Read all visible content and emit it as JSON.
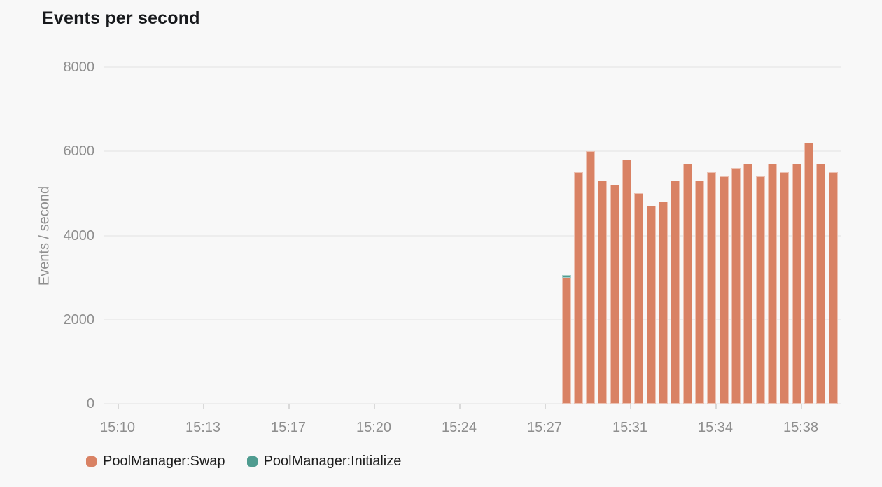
{
  "page": {
    "background": "#f8f8f8"
  },
  "chart_data": {
    "type": "bar",
    "stacked": true,
    "title": "Events per second",
    "xlabel": "",
    "ylabel": "Events / second",
    "ylim": [
      0,
      8000
    ],
    "ytick_values": [
      0,
      2000,
      4000,
      6000,
      8000
    ],
    "ytick_labels": [
      "0",
      "2000",
      "4000",
      "6000",
      "8000"
    ],
    "xtick_labels": [
      "15:10",
      "15:13",
      "15:17",
      "15:20",
      "15:24",
      "15:27",
      "15:31",
      "15:34",
      "15:38"
    ],
    "grid": "horizontal",
    "legend_position": "bottom-left",
    "bucket_seconds": 30,
    "x": [
      "15:28:00",
      "15:28:30",
      "15:29:00",
      "15:29:30",
      "15:30:00",
      "15:30:30",
      "15:31:00",
      "15:31:30",
      "15:32:00",
      "15:32:30",
      "15:33:00",
      "15:33:30",
      "15:34:00",
      "15:34:30",
      "15:35:00",
      "15:35:30",
      "15:36:00",
      "15:36:30",
      "15:37:00",
      "15:37:30",
      "15:38:00",
      "15:38:30",
      "15:39:00"
    ],
    "series": [
      {
        "name": "PoolManager:Swap",
        "color": "#d98264",
        "values": [
          3000,
          5500,
          6000,
          5300,
          5200,
          5800,
          5000,
          4700,
          4800,
          5300,
          5700,
          5300,
          5500,
          5400,
          5600,
          5700,
          5400,
          5700,
          5500,
          5700,
          6200,
          5700,
          5500
        ]
      },
      {
        "name": "PoolManager:Initialize",
        "color": "#4f9c90",
        "values": [
          60,
          0,
          0,
          0,
          0,
          0,
          0,
          0,
          0,
          0,
          0,
          0,
          0,
          0,
          0,
          0,
          0,
          0,
          0,
          0,
          0,
          0,
          0
        ]
      }
    ]
  },
  "legend": {
    "items": [
      {
        "label": "PoolManager:Swap",
        "color": "#d98264"
      },
      {
        "label": "PoolManager:Initialize",
        "color": "#4f9c90"
      }
    ]
  }
}
